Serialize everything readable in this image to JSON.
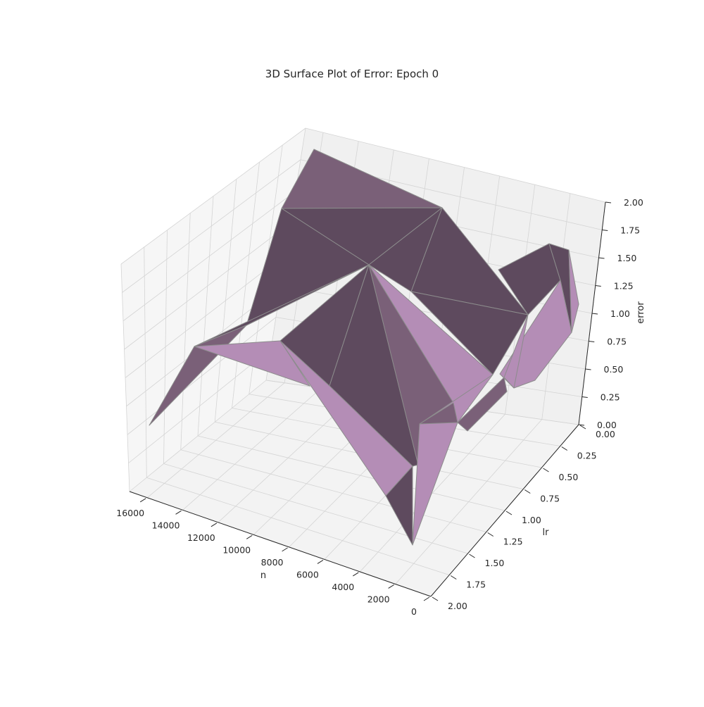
{
  "chart_data": {
    "type": "surface3d",
    "title": "3D Surface Plot of Error: Epoch 0",
    "xlabel": "n",
    "ylabel": "lr",
    "zlabel": "error",
    "x_ticks": [
      "0",
      "2000",
      "4000",
      "6000",
      "8000",
      "10000",
      "12000",
      "14000",
      "16000"
    ],
    "y_ticks": [
      "0.00",
      "0.25",
      "0.50",
      "0.75",
      "1.00",
      "1.25",
      "1.50",
      "1.75",
      "2.00"
    ],
    "z_ticks": [
      "0.00",
      "0.25",
      "0.50",
      "0.75",
      "1.00",
      "1.25",
      "1.50",
      "1.75",
      "2.00"
    ],
    "xlim": [
      0,
      17000
    ],
    "ylim": [
      0,
      2
    ],
    "zlim": [
      0,
      2
    ],
    "grid": true,
    "colors": {
      "surface_dark": "#5e4a5e",
      "surface_mid": "#7a6078",
      "surface_light": "#b48db6",
      "edge": "#8c8c8c",
      "pane_left": "#f6f6f6",
      "pane_back": "#f0f0f0",
      "pane_floor": "#f3f3f3",
      "grid": "#d4d4d4"
    }
  }
}
